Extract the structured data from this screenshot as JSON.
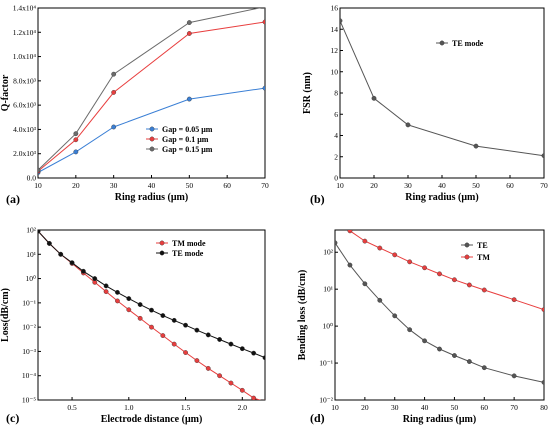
{
  "chart_data": [
    {
      "panel": "(a)",
      "type": "line",
      "xlabel": "Ring radius (μm)",
      "ylabel": "Q-factor",
      "xlim": [
        10,
        70
      ],
      "ylim": [
        0,
        14000
      ],
      "xticks": [
        10,
        20,
        30,
        40,
        50,
        60,
        70
      ],
      "yticks": [
        {
          "v": 0,
          "label": "0.0"
        },
        {
          "v": 2000,
          "label": "2.0x10³"
        },
        {
          "v": 4000,
          "label": "4.0x10³"
        },
        {
          "v": 6000,
          "label": "6.0x10³"
        },
        {
          "v": 8000,
          "label": "8.0x10³"
        },
        {
          "v": 10000,
          "label": "1.0x10⁴"
        },
        {
          "v": 12000,
          "label": "1.2x10⁴"
        },
        {
          "v": 14000,
          "label": "1.4x10⁴"
        }
      ],
      "legend_position": "bottom-right",
      "series": [
        {
          "name": "Gap = 0.05 μm",
          "color": "#3a7fd5",
          "x": [
            10,
            20,
            30,
            50,
            70
          ],
          "y": [
            450,
            2150,
            4200,
            6500,
            7400
          ]
        },
        {
          "name": "Gap = 0.1 μm",
          "color": "#e83e3e",
          "x": [
            10,
            20,
            30,
            50,
            70
          ],
          "y": [
            550,
            3150,
            7050,
            11900,
            12850
          ]
        },
        {
          "name": "Gap = 0.15 μm",
          "color": "#6b6b6b",
          "x": [
            10,
            20,
            30,
            50,
            70
          ],
          "y": [
            650,
            3650,
            8550,
            12800,
            14100
          ]
        }
      ]
    },
    {
      "panel": "(b)",
      "type": "line",
      "xlabel": "Ring radius (μm)",
      "ylabel": "FSR (nm)",
      "xlim": [
        10,
        70
      ],
      "ylim": [
        0,
        16
      ],
      "xticks": [
        10,
        20,
        30,
        40,
        50,
        60,
        70
      ],
      "yticks": [
        {
          "v": 0,
          "label": "0"
        },
        {
          "v": 2,
          "label": "2"
        },
        {
          "v": 4,
          "label": "4"
        },
        {
          "v": 6,
          "label": "6"
        },
        {
          "v": 8,
          "label": "8"
        },
        {
          "v": 10,
          "label": "10"
        },
        {
          "v": 12,
          "label": "12"
        },
        {
          "v": 14,
          "label": "14"
        },
        {
          "v": 16,
          "label": "16"
        }
      ],
      "legend_position": "top-right",
      "series": [
        {
          "name": "TE mode",
          "color": "#555555",
          "x": [
            10,
            20,
            30,
            50,
            70
          ],
          "y": [
            14.8,
            7.5,
            5.0,
            3.0,
            2.1
          ]
        }
      ]
    },
    {
      "panel": "(c)",
      "type": "line",
      "scale_y": "log",
      "xlabel": "Electrode distance (μm)",
      "ylabel": "Loss(dB/cm)",
      "xlim": [
        0.2,
        2.2
      ],
      "ylim": [
        1e-05,
        100
      ],
      "xticks": [
        {
          "v": 0.5,
          "label": "0.5"
        },
        {
          "v": 1.0,
          "label": "1.0"
        },
        {
          "v": 1.5,
          "label": "1.5"
        },
        {
          "v": 2.0,
          "label": "2.0"
        }
      ],
      "yticks": [
        {
          "v": 100,
          "label": "10²"
        },
        {
          "v": 10,
          "label": "10¹"
        },
        {
          "v": 1,
          "label": "10⁰"
        },
        {
          "v": 0.1,
          "label": "10⁻¹"
        },
        {
          "v": 0.01,
          "label": "10⁻²"
        },
        {
          "v": 0.001,
          "label": "10⁻³"
        },
        {
          "v": 0.0001,
          "label": "10⁻⁴"
        },
        {
          "v": 1e-05,
          "label": "10⁻⁵"
        }
      ],
      "legend_position": "top-right",
      "series": [
        {
          "name": "TM mode",
          "color": "#e83e3e",
          "x": [
            0.2,
            0.3,
            0.4,
            0.5,
            0.6,
            0.7,
            0.8,
            0.9,
            1.0,
            1.1,
            1.2,
            1.3,
            1.4,
            1.5,
            1.6,
            1.7,
            1.8,
            1.9,
            2.0,
            2.1,
            2.2
          ],
          "y": [
            90,
            28,
            10,
            4.2,
            1.7,
            0.7,
            0.29,
            0.12,
            0.052,
            0.023,
            0.01,
            0.0045,
            0.002,
            0.0009,
            0.00042,
            0.0002,
            0.0001,
            5e-05,
            2.5e-05,
            1.2e-05,
            8.5e-06
          ]
        },
        {
          "name": "TE mode",
          "color": "#111111",
          "x": [
            0.2,
            0.3,
            0.4,
            0.5,
            0.6,
            0.7,
            0.8,
            0.9,
            1.0,
            1.1,
            1.2,
            1.3,
            1.4,
            1.5,
            1.6,
            1.7,
            1.8,
            1.9,
            2.0,
            2.1,
            2.2
          ],
          "y": [
            90,
            28,
            10,
            4.5,
            2.0,
            1.0,
            0.5,
            0.27,
            0.15,
            0.085,
            0.05,
            0.03,
            0.019,
            0.012,
            0.0075,
            0.0048,
            0.0031,
            0.002,
            0.0013,
            0.00085,
            0.00055
          ]
        }
      ]
    },
    {
      "panel": "(d)",
      "type": "line",
      "scale_y": "log",
      "xlabel": "Ring radius (μm)",
      "ylabel": "Bending loss (dB/cm)",
      "xlim": [
        10,
        80
      ],
      "ylim": [
        0.01,
        400
      ],
      "xticks": [
        {
          "v": 10,
          "label": "10"
        },
        {
          "v": 20,
          "label": "20"
        },
        {
          "v": 30,
          "label": "30"
        },
        {
          "v": 40,
          "label": "40"
        },
        {
          "v": 50,
          "label": "50"
        },
        {
          "v": 60,
          "label": "60"
        },
        {
          "v": 70,
          "label": "70"
        },
        {
          "v": 80,
          "label": "80"
        }
      ],
      "yticks": [
        {
          "v": 0.01,
          "label": "10⁻²"
        },
        {
          "v": 0.1,
          "label": "10⁻¹"
        },
        {
          "v": 1,
          "label": "10⁰"
        },
        {
          "v": 10,
          "label": "10¹"
        },
        {
          "v": 100,
          "label": "10²"
        }
      ],
      "legend_position": "top-right",
      "series": [
        {
          "name": "TE",
          "color": "#555555",
          "x": [
            10,
            15,
            20,
            25,
            30,
            35,
            40,
            45,
            50,
            55,
            60,
            70,
            80
          ],
          "y": [
            180,
            45,
            14,
            5,
            1.9,
            0.8,
            0.4,
            0.24,
            0.16,
            0.11,
            0.075,
            0.045,
            0.03
          ]
        },
        {
          "name": "TM",
          "color": "#e83e3e",
          "x": [
            15,
            20,
            25,
            30,
            35,
            40,
            45,
            50,
            55,
            60,
            70,
            80
          ],
          "y": [
            380,
            200,
            130,
            85,
            55,
            38,
            26,
            18,
            13,
            9.5,
            5.2,
            2.8
          ]
        }
      ]
    }
  ]
}
